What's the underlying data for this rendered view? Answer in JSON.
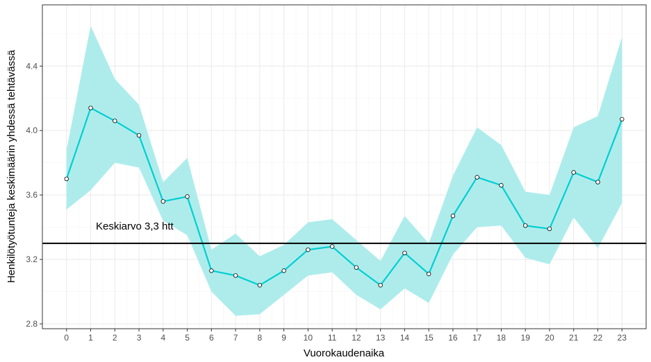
{
  "chart_data": {
    "type": "line",
    "title": "",
    "xlabel": "Vuorokaudenaika",
    "ylabel": "Henkilötyötunteja keskimäärin yhdessä tehtävässä",
    "x": [
      0,
      1,
      2,
      3,
      4,
      5,
      6,
      7,
      8,
      9,
      10,
      11,
      12,
      13,
      14,
      15,
      16,
      17,
      18,
      19,
      20,
      21,
      22,
      23
    ],
    "x_ticks": [
      "0",
      "1",
      "2",
      "3",
      "4",
      "5",
      "6",
      "7",
      "8",
      "9",
      "10",
      "11",
      "12",
      "13",
      "14",
      "15",
      "16",
      "17",
      "18",
      "19",
      "20",
      "21",
      "22",
      "23"
    ],
    "y_ticks": [
      "2.8",
      "3.2",
      "3.6",
      "4.0",
      "4.4"
    ],
    "xlim": [
      -1,
      24
    ],
    "ylim": [
      2.77,
      4.78
    ],
    "grid": true,
    "series": [
      {
        "values": [
          3.7,
          4.14,
          4.06,
          3.97,
          3.56,
          3.59,
          3.13,
          3.1,
          3.04,
          3.13,
          3.26,
          3.28,
          3.15,
          3.04,
          3.24,
          3.11,
          3.47,
          3.71,
          3.66,
          3.41,
          3.39,
          3.74,
          3.68,
          4.07
        ],
        "lower": [
          3.51,
          3.63,
          3.8,
          3.77,
          3.44,
          3.35,
          3.0,
          2.85,
          2.86,
          2.98,
          3.1,
          3.12,
          2.98,
          2.89,
          3.02,
          2.93,
          3.23,
          3.4,
          3.41,
          3.21,
          3.17,
          3.46,
          3.27,
          3.55
        ],
        "upper": [
          3.88,
          4.65,
          4.32,
          4.16,
          3.68,
          3.83,
          3.26,
          3.36,
          3.22,
          3.29,
          3.43,
          3.45,
          3.32,
          3.19,
          3.47,
          3.3,
          3.72,
          4.02,
          3.91,
          3.62,
          3.6,
          4.02,
          4.09,
          4.58
        ],
        "line_color": "#00ced1",
        "band_color": "#aeecec",
        "point_fill": "#ffffff",
        "point_stroke": "#000000"
      }
    ],
    "reference_line": {
      "y": 3.3,
      "color": "#000000",
      "label": "Keskiarvo 3,3 htt"
    }
  }
}
